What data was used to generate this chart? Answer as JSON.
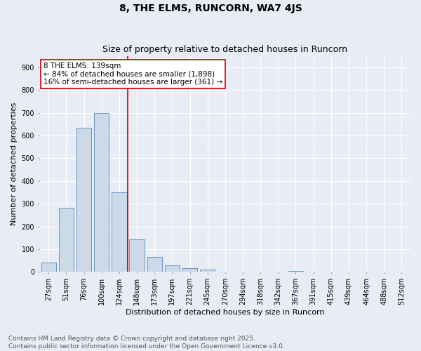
{
  "title": "8, THE ELMS, RUNCORN, WA7 4JS",
  "subtitle": "Size of property relative to detached houses in Runcorn",
  "xlabel": "Distribution of detached houses by size in Runcorn",
  "ylabel": "Number of detached properties",
  "bar_color": "#ccd9e8",
  "bar_edge_color": "#5588bb",
  "background_color": "#e8edf5",
  "grid_color": "#ffffff",
  "categories": [
    "27sqm",
    "51sqm",
    "76sqm",
    "100sqm",
    "124sqm",
    "148sqm",
    "173sqm",
    "197sqm",
    "221sqm",
    "245sqm",
    "270sqm",
    "294sqm",
    "318sqm",
    "342sqm",
    "367sqm",
    "391sqm",
    "415sqm",
    "439sqm",
    "464sqm",
    "488sqm",
    "512sqm"
  ],
  "values": [
    42,
    283,
    633,
    700,
    350,
    143,
    65,
    28,
    18,
    12,
    0,
    0,
    0,
    0,
    5,
    0,
    0,
    0,
    0,
    0,
    0
  ],
  "vline_x": 4.5,
  "vline_color": "#cc0000",
  "annotation_text": "8 THE ELMS: 139sqm\n← 84% of detached houses are smaller (1,898)\n16% of semi-detached houses are larger (361) →",
  "annotation_box_color": "#ffffff",
  "annotation_edge_color": "#cc0000",
  "ylim": [
    0,
    950
  ],
  "yticks": [
    0,
    100,
    200,
    300,
    400,
    500,
    600,
    700,
    800,
    900
  ],
  "footer_text": "Contains HM Land Registry data © Crown copyright and database right 2025.\nContains public sector information licensed under the Open Government Licence v3.0.",
  "title_fontsize": 10,
  "subtitle_fontsize": 9,
  "axis_label_fontsize": 8,
  "tick_fontsize": 7,
  "annotation_fontsize": 7.5,
  "footer_fontsize": 6.5
}
